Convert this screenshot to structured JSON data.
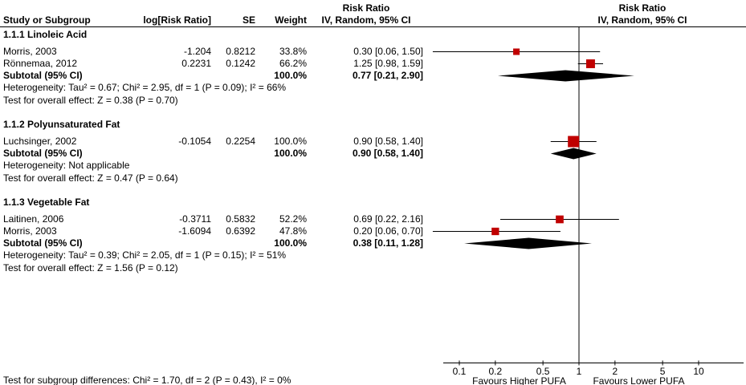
{
  "header": {
    "col_study": "Study or Subgroup",
    "col_log_rr": "log[Risk Ratio]",
    "col_se": "SE",
    "col_weight": "Weight",
    "col_ci_title": "Risk Ratio",
    "col_ci_sub": "IV, Random, 95% CI",
    "col_plot_title": "Risk Ratio",
    "col_plot_sub": "IV, Random, 95% CI"
  },
  "footer": {
    "subgroup_diff": "Test for subgroup differences: Chi² = 1.70, df = 2 (P = 0.43), I² = 0%",
    "favours_left": "Favours Higher PUFA",
    "favours_right": "Favours Lower PUFA"
  },
  "chart_data": {
    "type": "forest",
    "effect_measure": "Risk Ratio",
    "model": "IV, Random, 95% CI",
    "marker_color": "#c00000",
    "diamond_color": "#000000",
    "line_color": "#000000",
    "x_axis": {
      "scale": "log10",
      "range": [
        0.1,
        10
      ],
      "ticks": [
        0.1,
        0.2,
        0.5,
        1,
        2,
        5,
        10
      ],
      "tick_labels": [
        "0.1",
        "0.2",
        "0.5",
        "1",
        "2",
        "5",
        "10"
      ]
    },
    "groups": [
      {
        "title": "1.1.1 Linoleic Acid",
        "studies": [
          {
            "name": "Morris, 2003",
            "log_rr": "-1.204",
            "se": "0.8212",
            "weight": "33.8%",
            "weight_pct": 33.8,
            "ci_text": "0.30 [0.06, 1.50]",
            "rr": 0.3,
            "lo": 0.06,
            "hi": 1.5
          },
          {
            "name": "Rönnemaa, 2012",
            "log_rr": "0.2231",
            "se": "0.1242",
            "weight": "66.2%",
            "weight_pct": 66.2,
            "ci_text": "1.25 [0.98, 1.59]",
            "rr": 1.25,
            "lo": 0.98,
            "hi": 1.59
          }
        ],
        "subtotal": {
          "name": "Subtotal (95% CI)",
          "weight": "100.0%",
          "ci_text": "0.77 [0.21, 2.90]",
          "rr": 0.77,
          "lo": 0.21,
          "hi": 2.9
        },
        "heterogeneity": "Heterogeneity: Tau² = 0.67; Chi² = 2.95, df = 1 (P = 0.09); I² = 66%",
        "overall_effect": "Test for overall effect: Z = 0.38 (P = 0.70)"
      },
      {
        "title": "1.1.2 Polyunsaturated Fat",
        "studies": [
          {
            "name": "Luchsinger, 2002",
            "log_rr": "-0.1054",
            "se": "0.2254",
            "weight": "100.0%",
            "weight_pct": 100.0,
            "ci_text": "0.90 [0.58, 1.40]",
            "rr": 0.9,
            "lo": 0.58,
            "hi": 1.4
          }
        ],
        "subtotal": {
          "name": "Subtotal (95% CI)",
          "weight": "100.0%",
          "ci_text": "0.90 [0.58, 1.40]",
          "rr": 0.9,
          "lo": 0.58,
          "hi": 1.4
        },
        "heterogeneity": "Heterogeneity: Not applicable",
        "overall_effect": "Test for overall effect: Z = 0.47 (P = 0.64)"
      },
      {
        "title": "1.1.3 Vegetable Fat",
        "studies": [
          {
            "name": "Laitinen, 2006",
            "log_rr": "-0.3711",
            "se": "0.5832",
            "weight": "52.2%",
            "weight_pct": 52.2,
            "ci_text": "0.69 [0.22, 2.16]",
            "rr": 0.69,
            "lo": 0.22,
            "hi": 2.16
          },
          {
            "name": "Morris, 2003",
            "log_rr": "-1.6094",
            "se": "0.6392",
            "weight": "47.8%",
            "weight_pct": 47.8,
            "ci_text": "0.20 [0.06, 0.70]",
            "rr": 0.2,
            "lo": 0.06,
            "hi": 0.7
          }
        ],
        "subtotal": {
          "name": "Subtotal (95% CI)",
          "weight": "100.0%",
          "ci_text": "0.38 [0.11, 1.28]",
          "rr": 0.38,
          "lo": 0.11,
          "hi": 1.28
        },
        "heterogeneity": "Heterogeneity: Tau² = 0.39; Chi² = 2.05, df = 1 (P = 0.15); I² = 51%",
        "overall_effect": "Test for overall effect: Z = 1.56 (P = 0.12)"
      }
    ]
  }
}
